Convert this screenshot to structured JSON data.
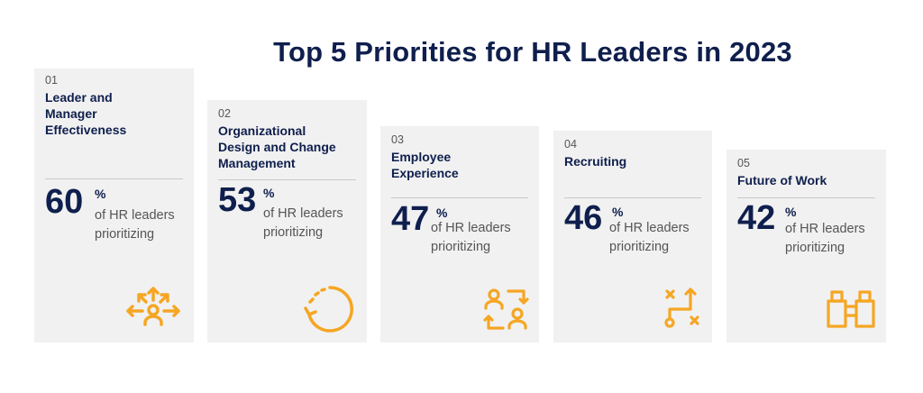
{
  "title": "Top 5 Priorities for HR Leaders in 2023",
  "accent_color": "#f5a623",
  "primary_color": "#0f1f4d",
  "chart_data": {
    "type": "bar",
    "title": "Top 5 Priorities for HR Leaders in 2023",
    "categories": [
      "Leader and Manager Effectiveness",
      "Organizational Design and Change Management",
      "Employee Experience",
      "Recruiting",
      "Future of Work"
    ],
    "values": [
      60,
      53,
      47,
      46,
      42
    ],
    "unit": "%"
  },
  "cards": [
    {
      "num": "01",
      "label_lines": [
        "Leader and",
        "Manager",
        "Effectiveness"
      ],
      "value": "60",
      "pct": "%",
      "sub1": "of HR leaders",
      "sub2": "prioritizing",
      "icon": "team-arrows-icon"
    },
    {
      "num": "02",
      "label_lines": [
        "Organizational",
        "Design and Change",
        "Management"
      ],
      "value": "53",
      "pct": "%",
      "sub1": "of HR leaders",
      "sub2": "prioritizing",
      "icon": "cycle-arrow-icon"
    },
    {
      "num": "03",
      "label_lines": [
        "Employee",
        "Experience"
      ],
      "value": "47",
      "pct": "%",
      "sub1": "of HR leaders",
      "sub2": "prioritizing",
      "icon": "people-swap-icon"
    },
    {
      "num": "04",
      "label_lines": [
        "Recruiting"
      ],
      "value": "46",
      "pct": "%",
      "sub1": "of HR leaders",
      "sub2": "prioritizing",
      "icon": "strategy-path-icon"
    },
    {
      "num": "05",
      "label_lines": [
        "Future of Work"
      ],
      "value": "42",
      "pct": "%",
      "sub1": "of HR leaders",
      "sub2": "prioritizing",
      "icon": "binoculars-icon"
    }
  ]
}
